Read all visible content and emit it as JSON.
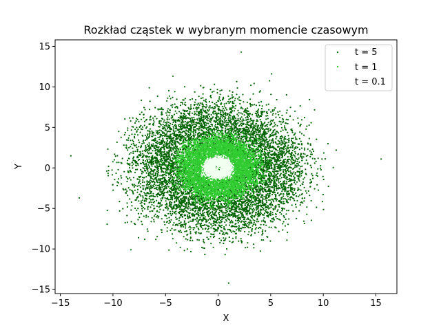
{
  "chart_data": {
    "type": "scatter",
    "title": "Rozkład cząstek w wybranym momencie czasowym",
    "xlabel": "X",
    "ylabel": "Y",
    "xlim": [
      -15.5,
      17
    ],
    "ylim": [
      -15.5,
      15.8
    ],
    "xticks": [
      -15,
      -10,
      -5,
      0,
      5,
      10,
      15
    ],
    "yticks": [
      -15,
      -10,
      -5,
      0,
      5,
      10,
      15
    ],
    "grid": false,
    "legend_position": "top-right",
    "series": [
      {
        "name": "t = 5",
        "color": "#006400",
        "distribution": {
          "center": [
            0,
            0
          ],
          "mean_radius": 5.5,
          "radial_std": 2.0
        },
        "outliers": [
          [
            15.5,
            1.1
          ],
          [
            -14,
            1.5
          ],
          [
            2.2,
            14.3
          ],
          [
            1,
            -14.2
          ],
          [
            -13.2,
            -3.7
          ]
        ]
      },
      {
        "name": "t = 1",
        "color": "#32cd32",
        "distribution": {
          "center": [
            0,
            0
          ],
          "mean_radius": 2.7,
          "radial_std": 0.85
        }
      },
      {
        "name": "t = 0.1",
        "color": "#f0fff0",
        "distribution": {
          "center": [
            0,
            0
          ],
          "mean_radius": 0.9,
          "radial_std": 0.27
        }
      }
    ]
  }
}
